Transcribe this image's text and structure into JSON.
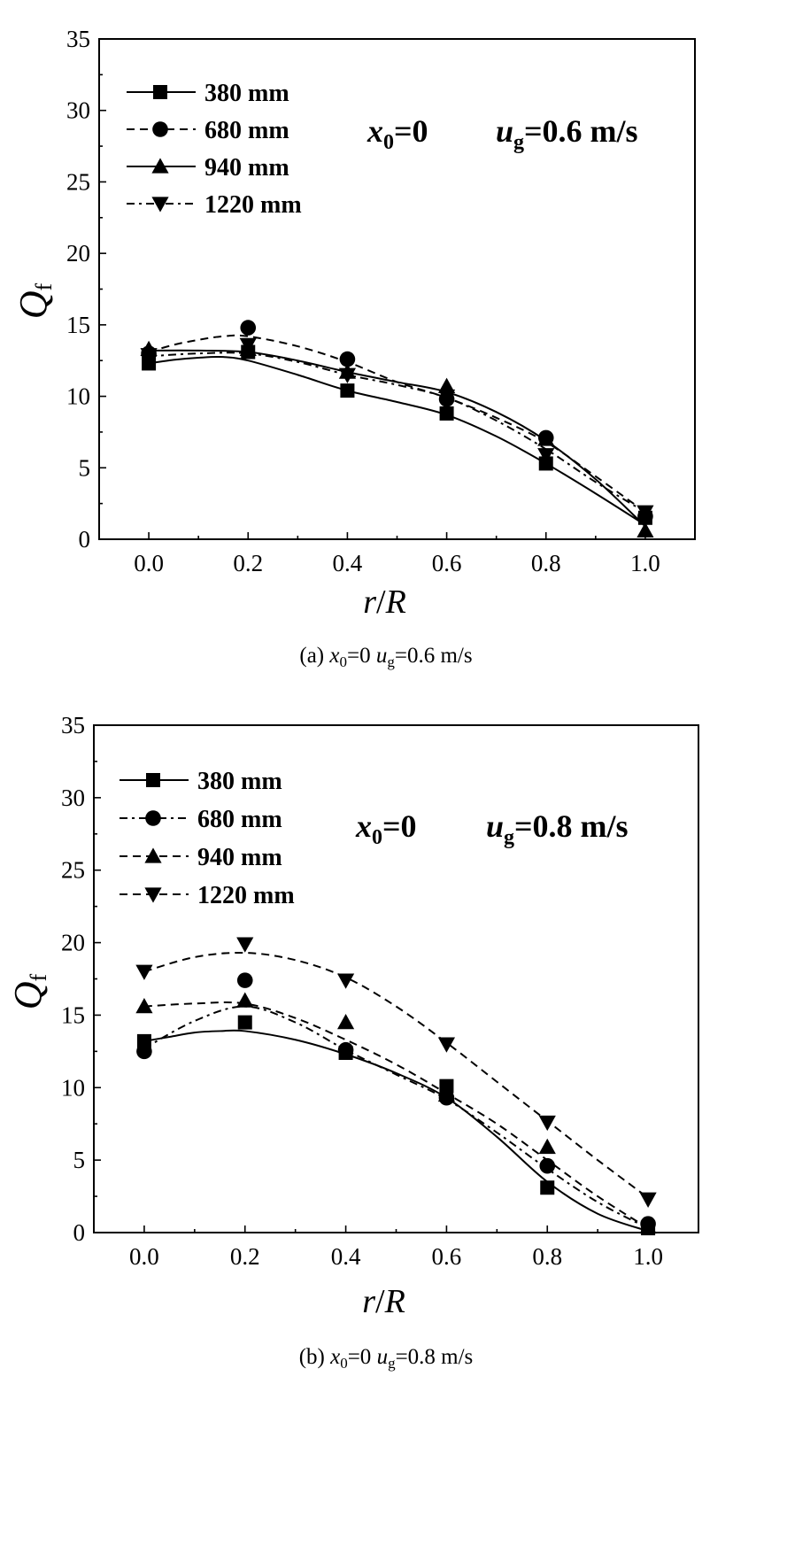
{
  "chart_data": [
    {
      "id": "a",
      "type": "line",
      "xlabel_italic": "r",
      "xlabel_sep": "/",
      "xlabel_italic2": "R",
      "ylabel": "Q",
      "ylabel_sub": "f",
      "xlim": [
        -0.1,
        1.1
      ],
      "ylim": [
        0,
        35
      ],
      "xticks": [
        0.0,
        0.2,
        0.4,
        0.6,
        0.8,
        1.0
      ],
      "xtick_labels": [
        "0.0",
        "0.2",
        "0.4",
        "0.6",
        "0.8",
        "1.0"
      ],
      "yticks": [
        0,
        5,
        10,
        15,
        20,
        25,
        30,
        35
      ],
      "ytick_labels": [
        "0",
        "5",
        "10",
        "15",
        "20",
        "25",
        "30",
        "35"
      ],
      "annotation": {
        "x_var": "x",
        "x_sub": "0",
        "x_val": "=0",
        "u_var": "u",
        "u_sub": "g",
        "u_val": "=0.6 m/s"
      },
      "caption": {
        "prefix": "(a) ",
        "x_var": "x",
        "x_sub": "0",
        "x_val": "=0 ",
        "u_var": "u",
        "u_sub": "g",
        "u_val": "=0.6 m/s"
      },
      "legend_position": "top-left",
      "series": [
        {
          "name": "380 mm",
          "marker": "square",
          "line": "solid",
          "x": [
            0.0,
            0.2,
            0.4,
            0.6,
            0.8,
            1.0
          ],
          "values": [
            12.3,
            13.1,
            10.4,
            8.8,
            5.3,
            1.5
          ],
          "fit": [
            [
              0.0,
              12.3
            ],
            [
              0.05,
              12.55
            ],
            [
              0.1,
              12.7
            ],
            [
              0.15,
              12.75
            ],
            [
              0.2,
              12.5
            ],
            [
              0.3,
              11.5
            ],
            [
              0.4,
              10.4
            ],
            [
              0.5,
              9.6
            ],
            [
              0.6,
              8.7
            ],
            [
              0.7,
              7.2
            ],
            [
              0.8,
              5.3
            ],
            [
              0.9,
              3.2
            ],
            [
              1.0,
              1.0
            ]
          ]
        },
        {
          "name": "680 mm",
          "marker": "circle",
          "line": "dash",
          "x": [
            0.0,
            0.2,
            0.4,
            0.6,
            0.8,
            1.0
          ],
          "values": [
            13.0,
            14.8,
            12.6,
            9.8,
            7.1,
            1.6
          ],
          "fit": [
            [
              0.0,
              13.1
            ],
            [
              0.05,
              13.6
            ],
            [
              0.1,
              13.95
            ],
            [
              0.15,
              14.2
            ],
            [
              0.2,
              14.2
            ],
            [
              0.3,
              13.5
            ],
            [
              0.4,
              12.4
            ],
            [
              0.5,
              11.0
            ],
            [
              0.6,
              9.9
            ],
            [
              0.7,
              8.5
            ],
            [
              0.8,
              6.8
            ],
            [
              0.9,
              4.4
            ],
            [
              1.0,
              1.9
            ]
          ]
        },
        {
          "name": "940 mm",
          "marker": "triangle-up",
          "line": "solid",
          "x": [
            0.0,
            0.2,
            0.4,
            0.6,
            0.8,
            1.0
          ],
          "values": [
            13.3,
            13.3,
            11.7,
            10.7,
            7.0,
            0.6
          ],
          "fit": [
            [
              0.0,
              13.2
            ],
            [
              0.1,
              13.2
            ],
            [
              0.2,
              13.1
            ],
            [
              0.3,
              12.5
            ],
            [
              0.4,
              11.7
            ],
            [
              0.5,
              11.0
            ],
            [
              0.6,
              10.3
            ],
            [
              0.7,
              8.9
            ],
            [
              0.8,
              6.9
            ],
            [
              0.9,
              4.2
            ],
            [
              1.0,
              0.9
            ]
          ]
        },
        {
          "name": "1220 mm",
          "marker": "triangle-down",
          "line": "dashdot",
          "x": [
            0.0,
            0.2,
            0.4,
            0.6,
            0.8,
            1.0
          ],
          "values": [
            12.9,
            13.6,
            11.5,
            10.0,
            5.9,
            1.9
          ],
          "fit": [
            [
              0.0,
              12.8
            ],
            [
              0.1,
              13.0
            ],
            [
              0.2,
              13.0
            ],
            [
              0.3,
              12.4
            ],
            [
              0.4,
              11.5
            ],
            [
              0.5,
              10.8
            ],
            [
              0.6,
              9.9
            ],
            [
              0.7,
              8.3
            ],
            [
              0.8,
              6.3
            ],
            [
              0.9,
              4.0
            ],
            [
              1.0,
              1.9
            ]
          ]
        }
      ]
    },
    {
      "id": "b",
      "type": "line",
      "xlabel_italic": "r",
      "xlabel_sep": "/",
      "xlabel_italic2": "R",
      "ylabel": "Q",
      "ylabel_sub": "f",
      "xlim": [
        -0.1,
        1.1
      ],
      "ylim": [
        0,
        35
      ],
      "xticks": [
        0.0,
        0.2,
        0.4,
        0.6,
        0.8,
        1.0
      ],
      "xtick_labels": [
        "0.0",
        "0.2",
        "0.4",
        "0.6",
        "0.8",
        "1.0"
      ],
      "yticks": [
        0,
        5,
        10,
        15,
        20,
        25,
        30,
        35
      ],
      "ytick_labels": [
        "0",
        "5",
        "10",
        "15",
        "20",
        "25",
        "30",
        "35"
      ],
      "annotation": {
        "x_var": "x",
        "x_sub": "0",
        "x_val": "=0",
        "u_var": "u",
        "u_sub": "g",
        "u_val": "=0.8 m/s"
      },
      "caption": {
        "prefix": "(b) ",
        "x_var": "x",
        "x_sub": "0",
        "x_val": "=0 ",
        "u_var": "u",
        "u_sub": "g",
        "u_val": "=0.8 m/s"
      },
      "legend_position": "top-left",
      "series": [
        {
          "name": "380 mm",
          "marker": "square",
          "line": "solid",
          "x": [
            0.0,
            0.2,
            0.4,
            0.6,
            0.8,
            1.0
          ],
          "values": [
            13.2,
            14.5,
            12.4,
            10.1,
            3.1,
            0.3
          ],
          "fit": [
            [
              0.0,
              13.2
            ],
            [
              0.05,
              13.5
            ],
            [
              0.1,
              13.8
            ],
            [
              0.15,
              13.9
            ],
            [
              0.2,
              13.9
            ],
            [
              0.3,
              13.3
            ],
            [
              0.4,
              12.3
            ],
            [
              0.5,
              11.0
            ],
            [
              0.6,
              9.3
            ],
            [
              0.7,
              6.6
            ],
            [
              0.8,
              3.5
            ],
            [
              0.9,
              1.3
            ],
            [
              1.0,
              0.1
            ]
          ]
        },
        {
          "name": "680 mm",
          "marker": "circle",
          "line": "dashdot",
          "x": [
            0.0,
            0.2,
            0.4,
            0.6,
            0.8,
            1.0
          ],
          "values": [
            12.5,
            17.4,
            12.6,
            9.3,
            4.6,
            0.6
          ],
          "fit": [
            [
              0.0,
              12.7
            ],
            [
              0.1,
              14.6
            ],
            [
              0.2,
              15.6
            ],
            [
              0.3,
              14.5
            ],
            [
              0.4,
              12.6
            ],
            [
              0.5,
              10.9
            ],
            [
              0.6,
              9.2
            ],
            [
              0.7,
              6.9
            ],
            [
              0.8,
              4.4
            ],
            [
              0.9,
              2.1
            ],
            [
              1.0,
              0.3
            ]
          ]
        },
        {
          "name": "940 mm",
          "marker": "triangle-up",
          "line": "dash",
          "x": [
            0.0,
            0.2,
            0.4,
            0.6,
            0.8,
            1.0
          ],
          "values": [
            15.6,
            16.0,
            14.5,
            9.5,
            5.9,
            0.4
          ],
          "fit": [
            [
              0.0,
              15.6
            ],
            [
              0.1,
              15.8
            ],
            [
              0.2,
              15.8
            ],
            [
              0.3,
              14.8
            ],
            [
              0.4,
              13.3
            ],
            [
              0.5,
              11.6
            ],
            [
              0.6,
              9.6
            ],
            [
              0.7,
              7.5
            ],
            [
              0.8,
              5.0
            ],
            [
              0.9,
              2.5
            ],
            [
              1.0,
              0.3
            ]
          ]
        },
        {
          "name": "1220 mm",
          "marker": "triangle-down",
          "line": "dash",
          "x": [
            0.0,
            0.2,
            0.4,
            0.6,
            0.8,
            1.0
          ],
          "values": [
            18.0,
            19.9,
            17.4,
            13.0,
            7.6,
            2.3
          ],
          "fit": [
            [
              0.0,
              18.0
            ],
            [
              0.1,
              19.0
            ],
            [
              0.2,
              19.3
            ],
            [
              0.3,
              18.8
            ],
            [
              0.4,
              17.6
            ],
            [
              0.5,
              15.6
            ],
            [
              0.6,
              13.1
            ],
            [
              0.7,
              10.4
            ],
            [
              0.8,
              7.7
            ],
            [
              0.9,
              5.0
            ],
            [
              1.0,
              2.4
            ]
          ]
        }
      ]
    }
  ]
}
